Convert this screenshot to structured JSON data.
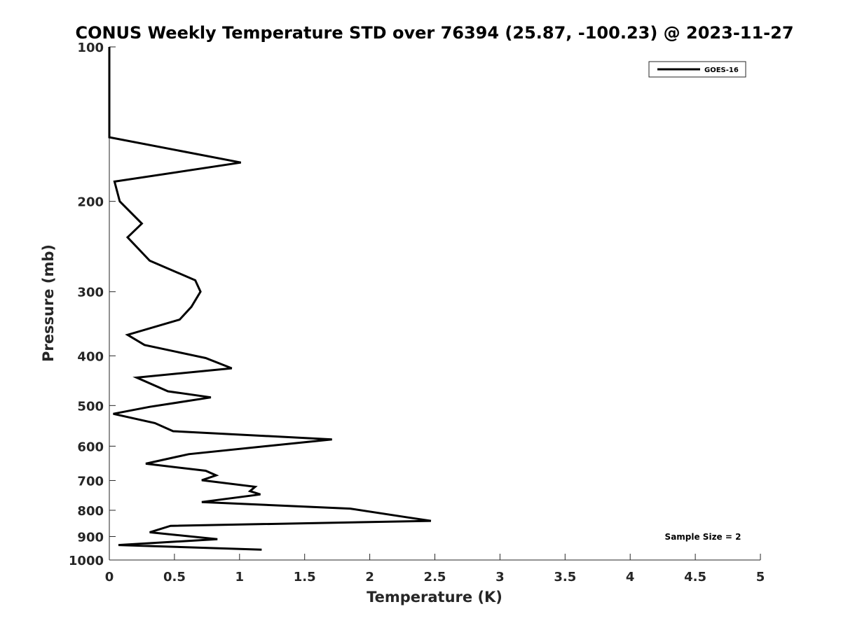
{
  "chart_data": {
    "type": "line",
    "title": "CONUS Weekly Temperature STD over 76394 (25.87, -100.23) @ 2023-11-27",
    "xlabel": "Temperature (K)",
    "ylabel": "Pressure (mb)",
    "xlim": [
      0,
      5
    ],
    "ylim": [
      100,
      1000
    ],
    "yscale": "log",
    "y_reversed": true,
    "xticks": [
      0,
      0.5,
      1,
      1.5,
      2,
      2.5,
      3,
      3.5,
      4,
      4.5,
      5
    ],
    "xtick_labels": [
      "0",
      "0.5",
      "1",
      "1.5",
      "2",
      "2.5",
      "3",
      "3.5",
      "4",
      "4.5",
      "5"
    ],
    "yticks": [
      100,
      200,
      300,
      400,
      500,
      600,
      700,
      800,
      900,
      1000
    ],
    "ytick_labels": [
      "100",
      "200",
      "300",
      "400",
      "500",
      "600",
      "700",
      "800",
      "900",
      "1000"
    ],
    "grid": false,
    "legend_position": "top-right",
    "annotation": "Sample Size = 2",
    "series": [
      {
        "name": "GOES-16",
        "color": "#000000",
        "points": [
          [
            0.0,
            100
          ],
          [
            0.0,
            150
          ],
          [
            1.01,
            168
          ],
          [
            0.04,
            183
          ],
          [
            0.08,
            200
          ],
          [
            0.25,
            221
          ],
          [
            0.14,
            235
          ],
          [
            0.31,
            261
          ],
          [
            0.66,
            285
          ],
          [
            0.7,
            300
          ],
          [
            0.63,
            321
          ],
          [
            0.54,
            340
          ],
          [
            0.14,
            364
          ],
          [
            0.27,
            381
          ],
          [
            0.74,
            404
          ],
          [
            0.94,
            423
          ],
          [
            0.21,
            441
          ],
          [
            0.45,
            469
          ],
          [
            0.78,
            482
          ],
          [
            0.31,
            503
          ],
          [
            0.03,
            519
          ],
          [
            0.35,
            541
          ],
          [
            0.49,
            561
          ],
          [
            1.71,
            582
          ],
          [
            0.61,
            622
          ],
          [
            0.28,
            649
          ],
          [
            0.74,
            670
          ],
          [
            0.82,
            684
          ],
          [
            0.71,
            699
          ],
          [
            1.12,
            720
          ],
          [
            1.08,
            734
          ],
          [
            1.16,
            745
          ],
          [
            0.71,
            771
          ],
          [
            1.85,
            794
          ],
          [
            2.28,
            825
          ],
          [
            2.47,
            839
          ],
          [
            0.47,
            858
          ],
          [
            0.31,
            883
          ],
          [
            0.83,
            911
          ],
          [
            0.07,
            935
          ],
          [
            1.17,
            955
          ]
        ]
      }
    ]
  }
}
